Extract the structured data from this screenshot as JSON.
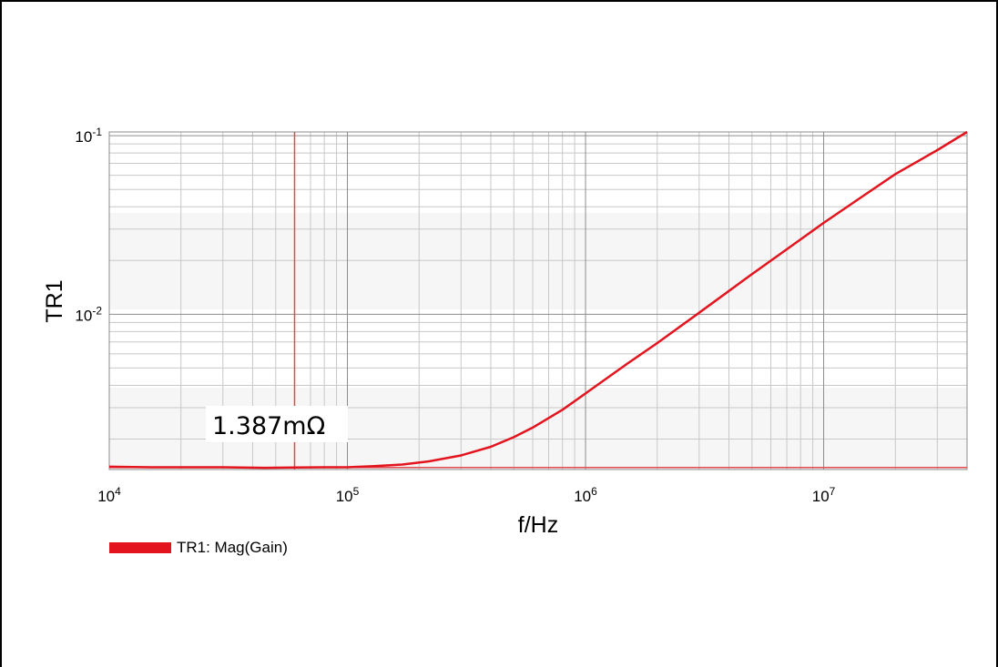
{
  "colors": {
    "trace": "#e3141e",
    "cursor": "#e04a50",
    "grid_major": "#8c8c8c",
    "grid_minor": "#c8c8c8",
    "band": "#f6f6f6"
  },
  "chart_data": {
    "type": "line",
    "title": "",
    "xlabel": "f/Hz",
    "ylabel": "TR1",
    "x_scale": "log",
    "y_scale": "log",
    "xlim": [
      10000,
      40000000
    ],
    "ylim": [
      0.00135,
      0.105
    ],
    "x_ticks": [
      {
        "value": 10000,
        "base": "10",
        "exp": "4"
      },
      {
        "value": 100000,
        "base": "10",
        "exp": "5"
      },
      {
        "value": 1000000,
        "base": "10",
        "exp": "6"
      },
      {
        "value": 10000000,
        "base": "10",
        "exp": "7"
      }
    ],
    "y_ticks": [
      {
        "value": 0.1,
        "base": "10",
        "exp": "-1"
      },
      {
        "value": 0.01,
        "base": "10",
        "exp": "-2"
      }
    ],
    "grid": true,
    "legend_position": "bottom-left",
    "series": [
      {
        "name": "TR1: Mag(Gain)",
        "x": [
          10000,
          15000,
          20000,
          30000,
          45000,
          60000,
          80000,
          100000,
          130000,
          170000,
          220000,
          300000,
          400000,
          500000,
          600000,
          800000,
          1000000,
          1500000,
          2000000,
          3000000,
          5000000,
          7000000,
          10000000,
          15000000,
          20000000,
          30000000,
          40000000
        ],
        "y": [
          0.0014,
          0.00139,
          0.00139,
          0.00139,
          0.00138,
          0.001387,
          0.00139,
          0.00139,
          0.00141,
          0.00144,
          0.0015,
          0.00162,
          0.00181,
          0.00205,
          0.00232,
          0.00292,
          0.0036,
          0.0053,
          0.0069,
          0.0102,
          0.0168,
          0.0231,
          0.0325,
          0.047,
          0.061,
          0.083,
          0.105
        ]
      }
    ],
    "cursor": {
      "x": 60000,
      "y": 0.001387,
      "label": "1.387mΩ"
    }
  },
  "legend": {
    "label": "TR1: Mag(Gain)"
  }
}
